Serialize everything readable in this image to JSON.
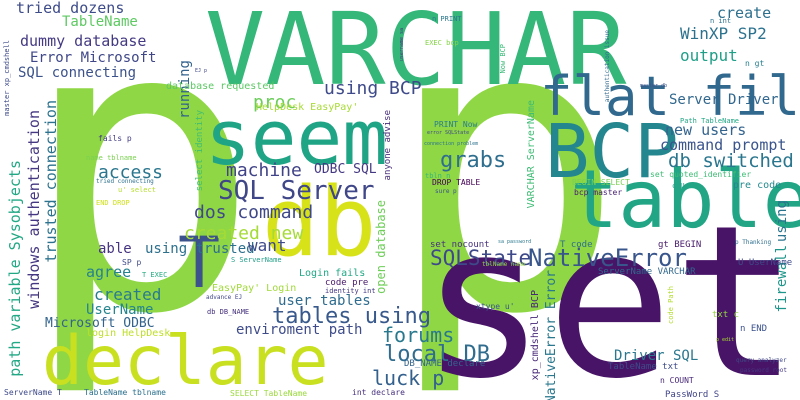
{
  "words": [
    {
      "text": "p",
      "color": "#8fd744"
    },
    {
      "text": "p",
      "color": "#8fd744"
    },
    {
      "text": "set",
      "color": "#481467"
    },
    {
      "text": "VARCHAR",
      "color": "#35b779"
    },
    {
      "text": "db",
      "color": "#d8e219"
    },
    {
      "text": "declare",
      "color": "#c8e020"
    },
    {
      "text": "table",
      "color": "#21a585"
    },
    {
      "text": "seem",
      "color": "#20a486"
    },
    {
      "text": "BCP",
      "color": "#24868e"
    },
    {
      "text": "flat file",
      "color": "#31688e"
    },
    {
      "text": "T",
      "color": "#3b528b"
    },
    {
      "text": "SQL Server",
      "color": "#3f4788"
    },
    {
      "text": "SQLState",
      "color": "#3e4989"
    },
    {
      "text": "NativeError",
      "color": "#39568c"
    },
    {
      "text": "db switched",
      "color": "#2a768e"
    },
    {
      "text": "tables using",
      "color": "#38598c"
    },
    {
      "text": "luck p",
      "color": "#34608d"
    },
    {
      "text": "local DB",
      "color": "#2f6c8e"
    },
    {
      "text": "forums",
      "color": "#29798e"
    },
    {
      "text": "dos command",
      "color": "#3f4889"
    },
    {
      "text": "created new",
      "color": "#a5db36"
    },
    {
      "text": "grabs",
      "color": "#2e6e8e"
    },
    {
      "text": "access",
      "color": "#2a768e"
    },
    {
      "text": "machine",
      "color": "#404387"
    },
    {
      "text": "proc",
      "color": "#6ccd5a"
    },
    {
      "text": "using BCP",
      "color": "#3e4a89"
    },
    {
      "text": "WinXP SP2",
      "color": "#2c728e"
    },
    {
      "text": "output",
      "color": "#1f9f88"
    },
    {
      "text": "create",
      "color": "#2d708e"
    },
    {
      "text": "new users",
      "color": "#33638d"
    },
    {
      "text": "command prompt",
      "color": "#3a548c"
    },
    {
      "text": "Server Driver",
      "color": "#31678e"
    },
    {
      "text": "tried dozens",
      "color": "#3e4c8a"
    },
    {
      "text": "TableName",
      "color": "#5ec962"
    },
    {
      "text": "dummy database",
      "color": "#443a83"
    },
    {
      "text": "Error Microsoft",
      "color": "#3f4788"
    },
    {
      "text": "SQL connecting",
      "color": "#3b528b"
    },
    {
      "text": "running",
      "color": "#33638d"
    },
    {
      "text": "trusted connection",
      "color": "#2c728e"
    },
    {
      "text": "windows authentication",
      "color": "#453781"
    },
    {
      "text": "path variable Sysobjects",
      "color": "#22a884"
    },
    {
      "text": "able",
      "color": "#463480"
    },
    {
      "text": "using trusted",
      "color": "#2d708e"
    },
    {
      "text": "agree",
      "color": "#26828e"
    },
    {
      "text": "want",
      "color": "#3e4a89"
    },
    {
      "text": "created",
      "color": "#287c8e"
    },
    {
      "text": "UserName",
      "color": "#25858e"
    },
    {
      "text": "Microsoft ODBC",
      "color": "#33638d"
    },
    {
      "text": "user tables",
      "color": "#2f6c8e"
    },
    {
      "text": "enviroment path",
      "color": "#3e4c8a"
    },
    {
      "text": "ODBC SQL",
      "color": "#453882"
    },
    {
      "text": "Driver SQL",
      "color": "#2a778e"
    },
    {
      "text": "firewall",
      "color": "#1f968b"
    },
    {
      "text": "using",
      "color": "#2b748e"
    },
    {
      "text": "Login fails",
      "color": "#22a884"
    },
    {
      "text": "EasyPay' Login",
      "color": "#a0da39"
    },
    {
      "text": "code pre",
      "color": "#481a6c"
    },
    {
      "text": "login HelpDesk",
      "color": "#bddf26"
    },
    {
      "text": "DB_NAME declare",
      "color": "#33638d"
    },
    {
      "text": "NativeError Error",
      "color": "#2a788e"
    },
    {
      "text": "xp_cmdshell BCP",
      "color": "#482878"
    },
    {
      "text": "VARCHAR ServerName",
      "color": "#3dbc74"
    },
    {
      "text": "open database",
      "color": "#6ece58"
    },
    {
      "text": "anyone advise",
      "color": "#472d7b"
    },
    {
      "text": "select identity",
      "color": "#42be71"
    },
    {
      "text": "HelpDesk EasyPay'",
      "color": "#a8db34"
    },
    {
      "text": "database requested",
      "color": "#5cc863"
    },
    {
      "text": "PRINT Now",
      "color": "#287d8e"
    },
    {
      "text": "DROP TABLE",
      "color": "#440154"
    },
    {
      "text": "BEGIN SELECT",
      "color": "#7ad151"
    },
    {
      "text": "set quoted_identifier",
      "color": "#3dbc74"
    },
    {
      "text": "pre code",
      "color": "#23898e"
    },
    {
      "text": "bcp master",
      "color": "#482173"
    },
    {
      "text": "set nocount",
      "color": "#46327e"
    },
    {
      "text": "T code",
      "color": "#2e6e8e"
    },
    {
      "text": "gt BEGIN",
      "color": "#481b6d"
    },
    {
      "text": "ServerName VARCHAR",
      "color": "#31688e"
    },
    {
      "text": "U UserName",
      "color": "#3e4a89"
    },
    {
      "text": "n END",
      "color": "#3b518b"
    },
    {
      "text": "n COUNT",
      "color": "#482979"
    },
    {
      "text": "txt c",
      "color": "#93d741"
    },
    {
      "text": "PassWord S",
      "color": "#414487"
    },
    {
      "text": "TableName txt",
      "color": "#3e4c8a"
    },
    {
      "text": "SELECT TableName",
      "color": "#9bd93c"
    },
    {
      "text": "int declare",
      "color": "#46307e"
    },
    {
      "text": "TableName tblname",
      "color": "#2c718e"
    },
    {
      "text": "ServerName T",
      "color": "#3e4a89"
    },
    {
      "text": "xtype u'",
      "color": "#39568c"
    },
    {
      "text": "identity int",
      "color": "#453882"
    },
    {
      "text": "db DB_NAME",
      "color": "#46327e"
    },
    {
      "text": "S ServerName",
      "color": "#1f9e89"
    },
    {
      "text": "SP p",
      "color": "#3e4989"
    },
    {
      "text": "T EXEC",
      "color": "#25ac82"
    },
    {
      "text": "advance EJ",
      "color": "#404688"
    },
    {
      "text": "fails p",
      "color": "#433e85"
    },
    {
      "text": "name tblname",
      "color": "#7ad151"
    },
    {
      "text": "u' select",
      "color": "#b5de2b"
    },
    {
      "text": "tried connecting",
      "color": "#2d708e"
    },
    {
      "text": "END DROP",
      "color": "#d0e11c"
    },
    {
      "text": "tbln n",
      "color": "#35b779"
    },
    {
      "text": "sure p",
      "color": "#3b528b"
    },
    {
      "text": "c U",
      "color": "#1fa088"
    },
    {
      "text": "Now BCP",
      "color": "#38b977"
    },
    {
      "text": "EXEC bcp",
      "color": "#86d549"
    },
    {
      "text": "n PRINT",
      "color": "#2a788e"
    },
    {
      "text": "n int",
      "color": "#2c728e"
    },
    {
      "text": "n gt",
      "color": "#277f8e"
    },
    {
      "text": "Path TableName",
      "color": "#22a884"
    },
    {
      "text": "tblName name",
      "color": "#95d840"
    },
    {
      "text": "code Path",
      "color": "#b2dd2d"
    },
    {
      "text": "query analyzer",
      "color": "#3e4989"
    },
    {
      "text": "password root",
      "color": "#443983"
    },
    {
      "text": "p Thanking",
      "color": "#2e6f8e"
    },
    {
      "text": "authentication issue",
      "color": "#31688e"
    },
    {
      "text": "username sa",
      "color": "#46327e"
    },
    {
      "text": "sa password",
      "color": "#2a788e"
    },
    {
      "text": "master xp_cmdshell",
      "color": "#3e4a89"
    },
    {
      "text": "master db",
      "color": "#3b528b"
    },
    {
      "text": "EJ p",
      "color": "#404688"
    },
    {
      "text": "error SQLState",
      "color": "#3e4989"
    },
    {
      "text": "connection problem",
      "color": "#2c718e"
    },
    {
      "text": "p edit",
      "color": "#a8db34"
    }
  ]
}
